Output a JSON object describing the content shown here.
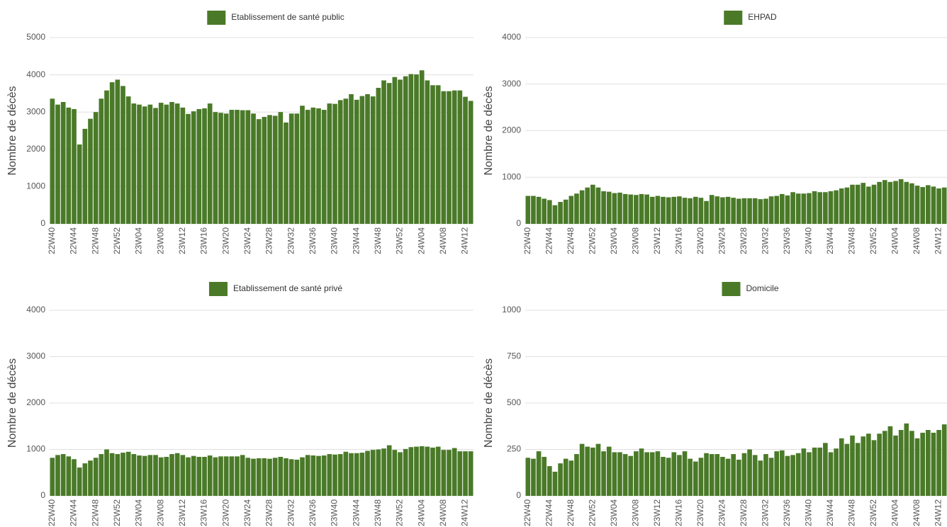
{
  "chart_data": [
    {
      "type": "bar",
      "y_label": "Nombre de décès",
      "categories": [
        "22W40",
        null,
        null,
        null,
        "22W44",
        null,
        null,
        null,
        "22W48",
        null,
        null,
        null,
        "22W52",
        null,
        null,
        null,
        "23W04",
        null,
        null,
        null,
        "23W08",
        null,
        null,
        null,
        "23W12",
        null,
        null,
        null,
        "23W16",
        null,
        null,
        null,
        "23W20",
        null,
        null,
        null,
        "23W24",
        null,
        null,
        null,
        "23W28",
        null,
        null,
        null,
        "23W32",
        null,
        null,
        null,
        "23W36",
        null,
        null,
        null,
        "23W40",
        null,
        null,
        null,
        "23W44",
        null,
        null,
        null,
        "23W48",
        null,
        null,
        null,
        "23W52",
        null,
        null,
        null,
        "24W04",
        null,
        null,
        null,
        "24W08",
        null,
        null,
        null,
        "24W12",
        null
      ],
      "series": [
        {
          "name": "Etablissement de santé public",
          "color": "#4a7a28",
          "values": [
            3360,
            3200,
            3270,
            3120,
            3080,
            2130,
            2550,
            2820,
            3000,
            3360,
            3580,
            3800,
            3870,
            3700,
            3420,
            3230,
            3200,
            3150,
            3200,
            3110,
            3250,
            3200,
            3270,
            3230,
            3120,
            2950,
            3020,
            3080,
            3100,
            3230,
            3000,
            2980,
            2960,
            3060,
            3060,
            3050,
            3050,
            2960,
            2810,
            2870,
            2920,
            2900,
            3000,
            2720,
            2960,
            2960,
            3170,
            3060,
            3120,
            3100,
            3060,
            3230,
            3220,
            3320,
            3360,
            3480,
            3330,
            3430,
            3480,
            3420,
            3650,
            3850,
            3780,
            3940,
            3870,
            3960,
            4020,
            4010,
            4120,
            3850,
            3720,
            3720,
            3560,
            3560,
            3580,
            3580,
            3410,
            3300
          ]
        }
      ],
      "ylim": [
        0,
        5000
      ],
      "yticks": [
        0,
        1000,
        2000,
        3000,
        4000,
        5000
      ],
      "grid": true
    },
    {
      "type": "bar",
      "y_label": "Nombre de décès",
      "categories": [
        "22W40",
        null,
        null,
        null,
        "22W44",
        null,
        null,
        null,
        "22W48",
        null,
        null,
        null,
        "22W52",
        null,
        null,
        null,
        "23W04",
        null,
        null,
        null,
        "23W08",
        null,
        null,
        null,
        "23W12",
        null,
        null,
        null,
        "23W16",
        null,
        null,
        null,
        "23W20",
        null,
        null,
        null,
        "23W24",
        null,
        null,
        null,
        "23W28",
        null,
        null,
        null,
        "23W32",
        null,
        null,
        null,
        "23W36",
        null,
        null,
        null,
        "23W40",
        null,
        null,
        null,
        "23W44",
        null,
        null,
        null,
        "23W48",
        null,
        null,
        null,
        "23W52",
        null,
        null,
        null,
        "24W04",
        null,
        null,
        null,
        "24W08",
        null,
        null,
        null,
        "24W12",
        null
      ],
      "series": [
        {
          "name": "EHPAD",
          "color": "#4a7a28",
          "values": [
            600,
            600,
            580,
            540,
            510,
            400,
            470,
            520,
            600,
            650,
            720,
            780,
            840,
            780,
            700,
            690,
            660,
            670,
            640,
            630,
            620,
            640,
            630,
            580,
            600,
            580,
            570,
            580,
            590,
            560,
            550,
            580,
            560,
            490,
            620,
            590,
            570,
            580,
            560,
            540,
            550,
            550,
            550,
            530,
            540,
            590,
            600,
            640,
            610,
            680,
            650,
            650,
            660,
            700,
            680,
            680,
            700,
            720,
            760,
            780,
            840,
            840,
            880,
            800,
            840,
            900,
            940,
            900,
            920,
            960,
            900,
            870,
            820,
            790,
            830,
            800,
            760,
            780
          ]
        }
      ],
      "ylim": [
        0,
        4000
      ],
      "yticks": [
        0,
        1000,
        2000,
        3000,
        4000
      ],
      "grid": true
    },
    {
      "type": "bar",
      "y_label": "Nombre de décès",
      "categories": [
        "22W40",
        null,
        null,
        null,
        "22W44",
        null,
        null,
        null,
        "22W48",
        null,
        null,
        null,
        "22W52",
        null,
        null,
        null,
        "23W04",
        null,
        null,
        null,
        "23W08",
        null,
        null,
        null,
        "23W12",
        null,
        null,
        null,
        "23W16",
        null,
        null,
        null,
        "23W20",
        null,
        null,
        null,
        "23W24",
        null,
        null,
        null,
        "23W28",
        null,
        null,
        null,
        "23W32",
        null,
        null,
        null,
        "23W36",
        null,
        null,
        null,
        "23W40",
        null,
        null,
        null,
        "23W44",
        null,
        null,
        null,
        "23W48",
        null,
        null,
        null,
        "23W52",
        null,
        null,
        null,
        "24W04",
        null,
        null,
        null,
        "24W08",
        null,
        null,
        null,
        "24W12",
        null
      ],
      "series": [
        {
          "name": "Etablissement de santé privé",
          "color": "#4a7a28",
          "values": [
            820,
            880,
            900,
            850,
            790,
            610,
            700,
            760,
            820,
            900,
            1000,
            920,
            900,
            930,
            950,
            900,
            870,
            860,
            880,
            880,
            830,
            840,
            900,
            920,
            880,
            830,
            860,
            840,
            840,
            870,
            830,
            850,
            850,
            850,
            850,
            880,
            820,
            800,
            810,
            810,
            800,
            820,
            840,
            810,
            790,
            780,
            830,
            880,
            870,
            860,
            870,
            900,
            890,
            900,
            950,
            920,
            920,
            930,
            970,
            990,
            1000,
            1020,
            1090,
            990,
            940,
            1010,
            1050,
            1060,
            1070,
            1060,
            1040,
            1060,
            990,
            990,
            1030,
            960,
            960,
            960
          ]
        }
      ],
      "ylim": [
        0,
        4000
      ],
      "yticks": [
        0,
        1000,
        2000,
        3000,
        4000
      ],
      "grid": true
    },
    {
      "type": "bar",
      "y_label": "Nombre de décès",
      "categories": [
        "22W40",
        null,
        null,
        null,
        "22W44",
        null,
        null,
        null,
        "22W48",
        null,
        null,
        null,
        "22W52",
        null,
        null,
        null,
        "23W04",
        null,
        null,
        null,
        "23W08",
        null,
        null,
        null,
        "23W12",
        null,
        null,
        null,
        "23W16",
        null,
        null,
        null,
        "23W20",
        null,
        null,
        null,
        "23W24",
        null,
        null,
        null,
        "23W28",
        null,
        null,
        null,
        "23W32",
        null,
        null,
        null,
        "23W36",
        null,
        null,
        null,
        "23W40",
        null,
        null,
        null,
        "23W44",
        null,
        null,
        null,
        "23W48",
        null,
        null,
        null,
        "23W52",
        null,
        null,
        null,
        "24W04",
        null,
        null,
        null,
        "24W08",
        null,
        null,
        null,
        "24W12",
        null
      ],
      "series": [
        {
          "name": "Domicile",
          "color": "#4a7a28",
          "values": [
            205,
            200,
            240,
            210,
            160,
            130,
            175,
            200,
            190,
            225,
            280,
            265,
            260,
            280,
            240,
            265,
            235,
            235,
            225,
            215,
            240,
            255,
            235,
            235,
            240,
            210,
            205,
            235,
            220,
            240,
            200,
            185,
            205,
            230,
            225,
            225,
            210,
            200,
            225,
            195,
            230,
            250,
            220,
            190,
            225,
            205,
            240,
            245,
            215,
            220,
            230,
            255,
            235,
            260,
            260,
            285,
            235,
            255,
            310,
            280,
            325,
            285,
            320,
            335,
            300,
            335,
            350,
            375,
            325,
            355,
            390,
            350,
            310,
            340,
            355,
            340,
            355,
            385
          ]
        }
      ],
      "ylim": [
        0,
        1000
      ],
      "yticks": [
        0,
        250,
        500,
        750,
        1000
      ],
      "grid": true
    }
  ]
}
